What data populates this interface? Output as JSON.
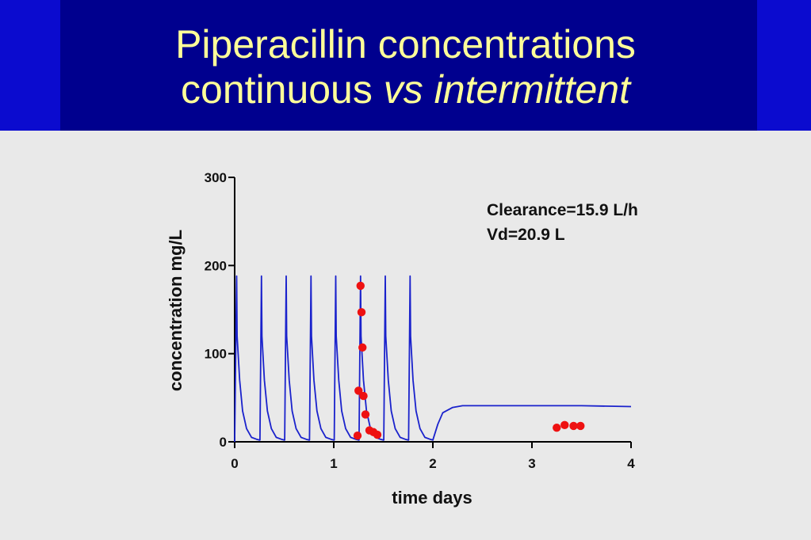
{
  "slide": {
    "title_line1": "Piperacillin concentrations",
    "title_line2_prefix": "continuous ",
    "title_line2_italic": "vs intermittent",
    "colors": {
      "banner": "#00008e",
      "banner_edge": "#0b0bcf",
      "title": "#ffff99",
      "background": "#e9e9e9"
    }
  },
  "chart_data": {
    "type": "scatter",
    "title": "",
    "xlabel": "time days",
    "ylabel": "concentration mg/L",
    "xlim": [
      0,
      4
    ],
    "ylim": [
      0,
      300
    ],
    "x_ticks": [
      0,
      1,
      2,
      3,
      4
    ],
    "y_ticks": [
      0,
      100,
      200,
      300
    ],
    "grid": false,
    "annotations": [
      "Clearance=15.9 L/h",
      "Vd=20.9 L"
    ],
    "series": [
      {
        "kind": "line",
        "color": "#1a22cc",
        "x": [
          0.0,
          0.02,
          0.025,
          0.05,
          0.08,
          0.12,
          0.17,
          0.22,
          0.25,
          0.255,
          0.27,
          0.275,
          0.3,
          0.33,
          0.37,
          0.42,
          0.47,
          0.5,
          0.505,
          0.52,
          0.525,
          0.55,
          0.58,
          0.62,
          0.67,
          0.72,
          0.75,
          0.755,
          0.77,
          0.775,
          0.8,
          0.83,
          0.87,
          0.92,
          0.97,
          1.0,
          1.005,
          1.02,
          1.025,
          1.05,
          1.08,
          1.12,
          1.17,
          1.22,
          1.25,
          1.255,
          1.27,
          1.275,
          1.3,
          1.33,
          1.37,
          1.42,
          1.47,
          1.5,
          1.505,
          1.52,
          1.525,
          1.55,
          1.58,
          1.62,
          1.67,
          1.72,
          1.75,
          1.755,
          1.77,
          1.775,
          1.8,
          1.83,
          1.87,
          1.92,
          1.97,
          2.0,
          2.05,
          2.1,
          2.2,
          2.3,
          2.5,
          3.0,
          3.5,
          4.0
        ],
        "y": [
          0,
          188,
          120,
          70,
          35,
          15,
          5,
          3,
          2,
          2,
          188,
          120,
          70,
          35,
          15,
          5,
          3,
          2,
          2,
          188,
          120,
          70,
          35,
          15,
          5,
          3,
          2,
          2,
          188,
          120,
          70,
          35,
          15,
          5,
          3,
          2,
          2,
          188,
          120,
          70,
          35,
          15,
          5,
          3,
          2,
          2,
          188,
          120,
          70,
          35,
          15,
          5,
          3,
          2,
          2,
          188,
          120,
          70,
          35,
          15,
          5,
          3,
          2,
          2,
          188,
          120,
          70,
          35,
          15,
          5,
          3,
          2,
          20,
          33,
          39,
          41,
          41,
          41,
          41,
          40
        ]
      },
      {
        "kind": "points",
        "color": "#ee1111",
        "x": [
          1.27,
          1.28,
          1.29,
          1.25,
          1.3,
          1.32,
          1.36,
          1.4,
          1.44,
          1.24
        ],
        "y": [
          177,
          147,
          107,
          58,
          52,
          31,
          13,
          11,
          8,
          7
        ]
      },
      {
        "kind": "points",
        "color": "#ee1111",
        "x": [
          3.25,
          3.33,
          3.42,
          3.49
        ],
        "y": [
          16,
          19,
          18,
          18
        ]
      }
    ]
  }
}
